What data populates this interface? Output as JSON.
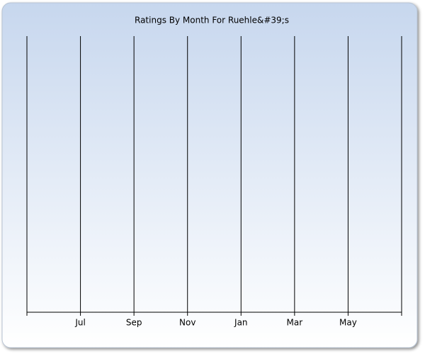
{
  "chart_data": {
    "type": "line",
    "title": "Ratings By Month For Ruehle&#39;s",
    "categories": [
      null,
      "Jul",
      "Sep",
      "Nov",
      "Jan",
      "Mar",
      "May",
      null
    ],
    "grid": true
  }
}
